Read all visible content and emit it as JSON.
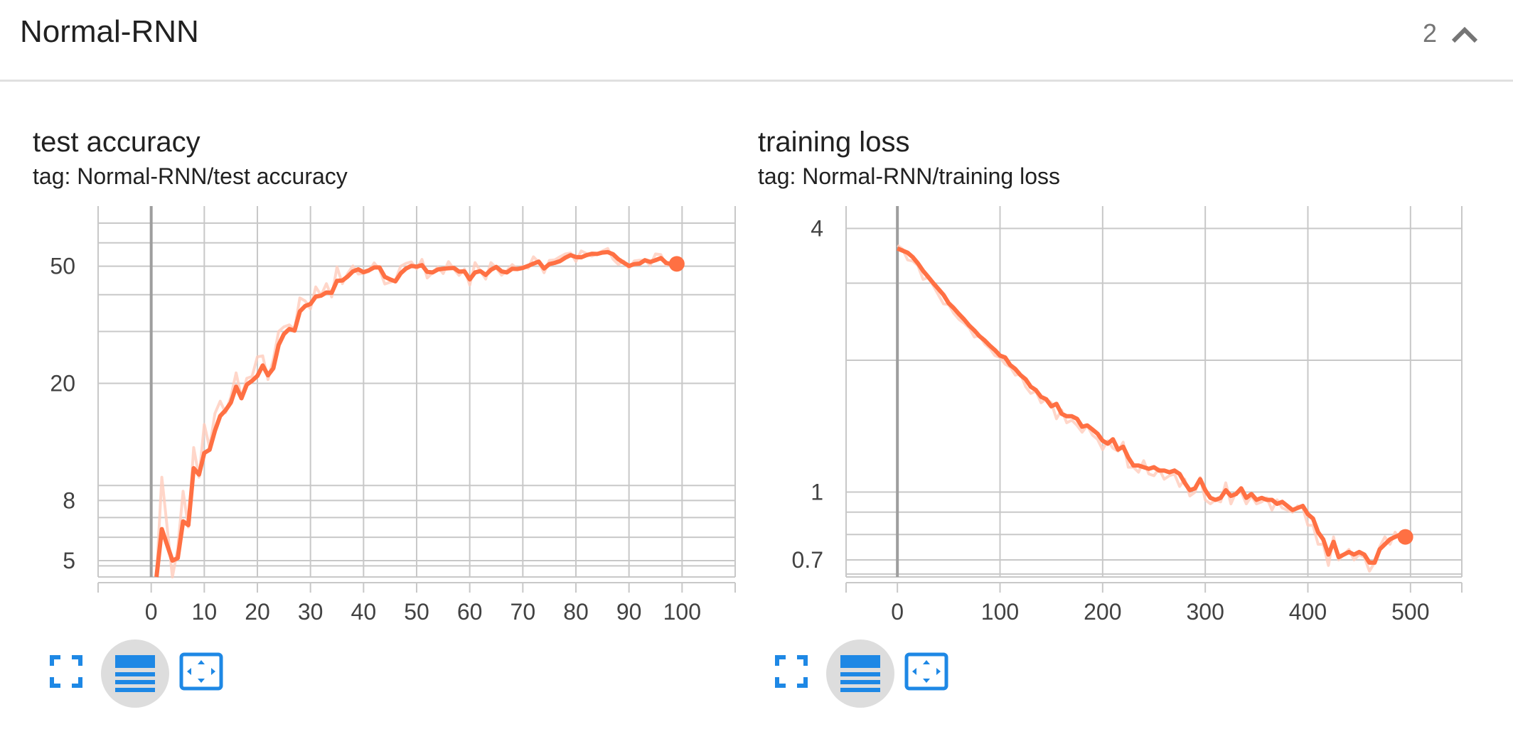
{
  "header": {
    "title": "Normal-RNN",
    "count": "2"
  },
  "colors": {
    "series": "#ff7043",
    "series_raw": "#ffccbc",
    "grid": "#c8c8c8",
    "zero_axis": "#9e9e9e",
    "button": "#1e88e5"
  },
  "icons": {
    "collapse": "chevron-up-icon",
    "expand": "fullscreen-icon",
    "log_scale": "lines-icon",
    "fit_domain": "fit-domain-icon"
  },
  "charts": [
    {
      "title": "test accuracy",
      "tag": "tag: Normal-RNN/test accuracy",
      "yticks": [
        "50",
        "20",
        "8",
        "5"
      ],
      "xticks": [
        "0",
        "10",
        "20",
        "30",
        "40",
        "50",
        "60",
        "70",
        "80",
        "90",
        "100"
      ]
    },
    {
      "title": "training loss",
      "tag": "tag: Normal-RNN/training loss",
      "yticks": [
        "4",
        "1",
        "0.7"
      ],
      "xticks": [
        "0",
        "100",
        "200",
        "300",
        "400",
        "500"
      ]
    }
  ],
  "chart_data": [
    {
      "type": "line",
      "title": "test accuracy",
      "subtitle": "tag: Normal-RNN/test accuracy",
      "xlabel": "",
      "ylabel": "",
      "log_y": true,
      "xlim": [
        -10,
        110
      ],
      "ylim": [
        4.4,
        80
      ],
      "x_ticks": [
        0,
        10,
        20,
        30,
        40,
        50,
        60,
        70,
        80,
        90,
        100
      ],
      "y_ticks": [
        5,
        8,
        20,
        50
      ],
      "grid": true,
      "series": [
        {
          "style": "smoothed",
          "x": [
            1,
            2,
            4,
            5,
            6,
            7,
            8,
            9,
            10,
            11,
            12,
            13,
            14,
            15,
            16,
            17,
            18,
            19,
            20,
            21,
            22,
            23,
            24,
            25,
            26,
            27,
            28,
            29,
            30,
            31,
            32,
            33,
            34,
            35,
            36,
            37,
            38,
            39,
            40,
            41,
            42,
            43,
            44,
            45,
            46,
            47,
            48,
            49,
            50,
            51,
            52,
            53,
            54,
            55,
            56,
            57,
            58,
            59,
            60,
            61,
            62,
            63,
            64,
            65,
            66,
            67,
            68,
            69,
            70,
            71,
            72,
            73,
            74,
            75,
            76,
            77,
            78,
            79,
            80,
            81,
            82,
            83,
            84,
            85,
            86,
            87,
            88,
            89,
            90,
            91,
            92,
            93,
            94,
            95,
            96,
            97,
            98,
            99
          ],
          "y": [
            4.4,
            6.4,
            5.0,
            5.1,
            6.8,
            6.6,
            10.3,
            9.8,
            11.6,
            11.9,
            13.8,
            15.5,
            16.2,
            17.2,
            19.5,
            17.8,
            19.8,
            20.4,
            21.2,
            23.0,
            21.3,
            22.5,
            27.0,
            29.4,
            30.6,
            30.2,
            35.1,
            36.6,
            37.2,
            39.4,
            39.7,
            40.7,
            40.6,
            44.6,
            44.7,
            46.1,
            48.0,
            48.8,
            47.7,
            48.4,
            49.5,
            49.5,
            46.0,
            45.1,
            44.4,
            47.3,
            49.1,
            50.1,
            49.8,
            50.4,
            47.8,
            47.6,
            48.7,
            49.0,
            49.2,
            49.3,
            47.9,
            48.0,
            45.1,
            47.6,
            48.1,
            46.7,
            48.6,
            49.7,
            48.0,
            47.6,
            49.0,
            48.9,
            49.3,
            50.1,
            51.0,
            51.8,
            49.1,
            50.8,
            51.3,
            52.0,
            53.4,
            54.5,
            53.7,
            53.6,
            54.5,
            55.1,
            55.0,
            55.6,
            55.8,
            54.9,
            52.8,
            51.4,
            50.1,
            50.8,
            51.0,
            52.4,
            51.7,
            52.4,
            53.3,
            51.3,
            50.8,
            50.9
          ]
        },
        {
          "style": "raw",
          "x": [
            1,
            2,
            4,
            5,
            6,
            7,
            8,
            9,
            10,
            11,
            12,
            13,
            14,
            15,
            16,
            17,
            18,
            19,
            20,
            21,
            22,
            23,
            24,
            25,
            26,
            27,
            28,
            29,
            30,
            31,
            32,
            33,
            34,
            35,
            36,
            37,
            38,
            39,
            40,
            41,
            42,
            43,
            44,
            45,
            46,
            47,
            48,
            49,
            50,
            51,
            52,
            53,
            54,
            55,
            56,
            57,
            58,
            59,
            60,
            61,
            62,
            63,
            64,
            65,
            66,
            67,
            68,
            69,
            70,
            71,
            72,
            73,
            74,
            75,
            76,
            77,
            78,
            79,
            80,
            81,
            82,
            83,
            84,
            85,
            86,
            87,
            88,
            89,
            90,
            91,
            92,
            93,
            94,
            95,
            96,
            97,
            98,
            99
          ],
          "y": [
            4.4,
            9.6,
            4.4,
            5.5,
            8.6,
            6.5,
            12.1,
            9.6,
            14.5,
            12.1,
            15.8,
            17.4,
            15.9,
            18.0,
            21.7,
            17.9,
            20.8,
            21.1,
            24.6,
            24.8,
            20.6,
            24.1,
            30.0,
            31.1,
            31.6,
            30.5,
            39.0,
            38.1,
            35.8,
            42.5,
            39.8,
            43.6,
            39.3,
            49.7,
            43.6,
            47.2,
            50.1,
            47.0,
            47.3,
            47.9,
            51.3,
            48.8,
            43.5,
            44.1,
            44.8,
            50.0,
            51.1,
            51.7,
            48.9,
            52.7,
            45.6,
            47.5,
            49.6,
            47.2,
            51.8,
            48.9,
            46.5,
            48.9,
            43.1,
            51.4,
            48.2,
            45.2,
            51.4,
            49.3,
            46.6,
            48.3,
            50.6,
            48.9,
            49.9,
            49.2,
            53.8,
            51.5,
            47.5,
            52.3,
            52.5,
            53.8,
            55.0,
            55.4,
            51.9,
            56.3,
            55.2,
            54.1,
            55.1,
            56.3,
            57.4,
            52.8,
            50.7,
            52.0,
            49.2,
            52.1,
            52.4,
            52.4,
            50.3,
            55.0,
            54.7,
            50.4,
            51.0,
            52.9
          ]
        }
      ]
    },
    {
      "type": "line",
      "title": "training loss",
      "subtitle": "tag: Normal-RNN/training loss",
      "xlabel": "",
      "ylabel": "",
      "log_y": true,
      "xlim": [
        -50,
        550
      ],
      "ylim": [
        0.64,
        4.5
      ],
      "x_ticks": [
        0,
        100,
        200,
        300,
        400,
        500
      ],
      "y_ticks": [
        0.7,
        1,
        4
      ],
      "grid": true,
      "series": [
        {
          "style": "smoothed",
          "x": [
            0,
            5,
            10,
            15,
            20,
            25,
            30,
            35,
            40,
            45,
            50,
            55,
            60,
            65,
            70,
            75,
            80,
            85,
            90,
            95,
            100,
            105,
            110,
            115,
            120,
            125,
            130,
            135,
            140,
            145,
            150,
            155,
            160,
            165,
            170,
            175,
            180,
            185,
            190,
            195,
            200,
            205,
            210,
            215,
            220,
            225,
            230,
            235,
            240,
            245,
            250,
            255,
            260,
            265,
            270,
            275,
            280,
            285,
            290,
            295,
            300,
            305,
            310,
            315,
            320,
            325,
            330,
            335,
            340,
            345,
            350,
            355,
            360,
            365,
            370,
            375,
            380,
            385,
            390,
            395,
            400,
            405,
            410,
            415,
            420,
            425,
            430,
            435,
            440,
            445,
            450,
            455,
            460,
            465,
            470,
            475,
            480,
            485,
            490,
            495
          ],
          "y": [
            3.6,
            3.56,
            3.52,
            3.44,
            3.33,
            3.2,
            3.1,
            3.0,
            2.91,
            2.82,
            2.7,
            2.63,
            2.55,
            2.48,
            2.4,
            2.34,
            2.27,
            2.22,
            2.16,
            2.11,
            2.05,
            2.03,
            1.95,
            1.91,
            1.85,
            1.81,
            1.74,
            1.71,
            1.65,
            1.63,
            1.57,
            1.59,
            1.51,
            1.49,
            1.49,
            1.47,
            1.41,
            1.42,
            1.39,
            1.36,
            1.31,
            1.29,
            1.32,
            1.25,
            1.27,
            1.2,
            1.15,
            1.15,
            1.14,
            1.13,
            1.14,
            1.12,
            1.12,
            1.11,
            1.12,
            1.1,
            1.05,
            1.01,
            1.02,
            1.07,
            1.01,
            0.97,
            0.96,
            0.97,
            1.01,
            0.98,
            0.99,
            1.02,
            0.97,
            0.99,
            0.96,
            0.97,
            0.96,
            0.96,
            0.94,
            0.95,
            0.93,
            0.91,
            0.92,
            0.93,
            0.89,
            0.87,
            0.81,
            0.78,
            0.72,
            0.77,
            0.71,
            0.72,
            0.73,
            0.72,
            0.73,
            0.72,
            0.69,
            0.69,
            0.74,
            0.76,
            0.78,
            0.79,
            0.8,
            0.79
          ]
        },
        {
          "style": "raw",
          "x": [
            0,
            5,
            10,
            15,
            20,
            25,
            30,
            35,
            40,
            45,
            50,
            55,
            60,
            65,
            70,
            75,
            80,
            85,
            90,
            95,
            100,
            105,
            110,
            115,
            120,
            125,
            130,
            135,
            140,
            145,
            150,
            155,
            160,
            165,
            170,
            175,
            180,
            185,
            190,
            195,
            200,
            205,
            210,
            215,
            220,
            225,
            230,
            235,
            240,
            245,
            250,
            255,
            260,
            265,
            270,
            275,
            280,
            285,
            290,
            295,
            300,
            305,
            310,
            315,
            320,
            325,
            330,
            335,
            340,
            345,
            350,
            355,
            360,
            365,
            370,
            375,
            380,
            385,
            390,
            395,
            400,
            405,
            410,
            415,
            420,
            425,
            430,
            435,
            440,
            445,
            450,
            455,
            460,
            465,
            470,
            475,
            480,
            485,
            490,
            495
          ],
          "y": [
            3.66,
            3.59,
            3.39,
            3.37,
            3.29,
            3.06,
            3.09,
            2.96,
            2.82,
            2.69,
            2.68,
            2.56,
            2.48,
            2.43,
            2.37,
            2.26,
            2.28,
            2.18,
            2.13,
            2.05,
            2.03,
            1.96,
            1.93,
            1.85,
            1.86,
            1.74,
            1.68,
            1.7,
            1.6,
            1.63,
            1.6,
            1.47,
            1.54,
            1.44,
            1.46,
            1.42,
            1.37,
            1.42,
            1.35,
            1.32,
            1.25,
            1.31,
            1.26,
            1.24,
            1.3,
            1.14,
            1.14,
            1.11,
            1.18,
            1.1,
            1.09,
            1.13,
            1.07,
            1.09,
            1.1,
            1.03,
            1.07,
            0.98,
            1.0,
            1.08,
            0.96,
            0.94,
            0.96,
            0.95,
            1.05,
            0.94,
            1.0,
            1.0,
            0.94,
            0.98,
            0.94,
            0.95,
            0.97,
            0.91,
            0.96,
            0.92,
            0.91,
            0.9,
            0.93,
            0.92,
            0.84,
            0.84,
            0.76,
            0.76,
            0.68,
            0.79,
            0.7,
            0.72,
            0.74,
            0.7,
            0.72,
            0.71,
            0.66,
            0.69,
            0.75,
            0.79,
            0.76,
            0.81,
            0.78,
            0.82
          ]
        }
      ]
    }
  ]
}
